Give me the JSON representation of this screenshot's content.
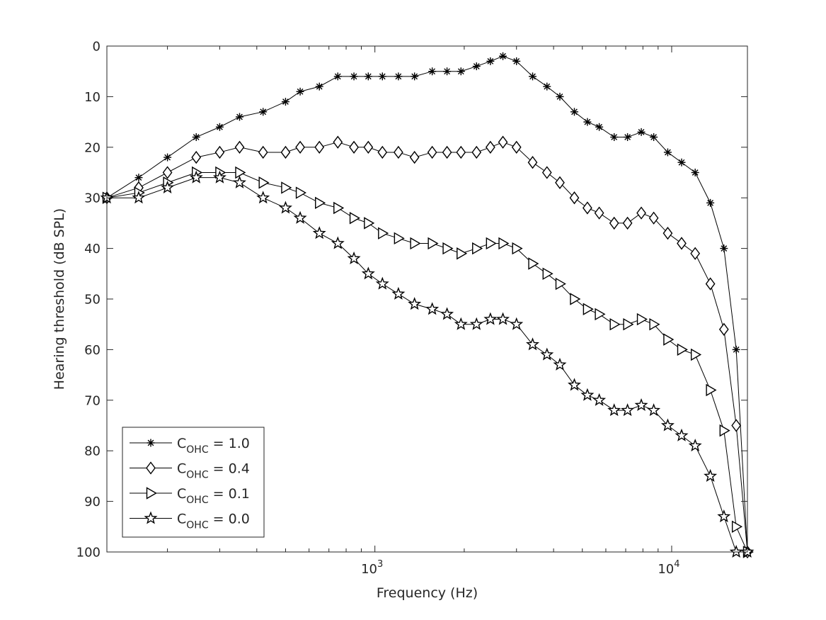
{
  "chart_data": {
    "type": "line",
    "title": "",
    "xlabel": "Frequency (Hz)",
    "ylabel": "Hearing threshold (dB SPL)",
    "xscale": "log",
    "xlim": [
      125,
      18000
    ],
    "ylim": [
      0,
      100
    ],
    "y_reversed": true,
    "grid": false,
    "legend_position": "bottom-left",
    "yticks": [
      0,
      10,
      20,
      30,
      40,
      50,
      60,
      70,
      80,
      90,
      100
    ],
    "xticks": [
      {
        "value": 1000,
        "base": "10",
        "exp": "3"
      },
      {
        "value": 10000,
        "base": "10",
        "exp": "4"
      }
    ],
    "x": [
      125,
      160,
      200,
      250,
      300,
      350,
      420,
      500,
      560,
      650,
      750,
      850,
      950,
      1060,
      1200,
      1360,
      1560,
      1750,
      1950,
      2200,
      2450,
      2700,
      3000,
      3400,
      3800,
      4200,
      4700,
      5200,
      5700,
      6400,
      7100,
      7900,
      8700,
      9700,
      10800,
      12000,
      13500,
      15000,
      16500,
      18000
    ],
    "series": [
      {
        "name": "C_OHC = 1.0",
        "label_main": "C",
        "label_sub": "OHC",
        "label_value": " = 1.0",
        "marker": "asterisk",
        "values": [
          30,
          26,
          22,
          18,
          16,
          14,
          13,
          11,
          9,
          8,
          6,
          6,
          6,
          6,
          6,
          6,
          5,
          5,
          5,
          4,
          3,
          2,
          3,
          6,
          8,
          10,
          13,
          15,
          16,
          18,
          18,
          17,
          18,
          21,
          23,
          25,
          31,
          40,
          60,
          100
        ]
      },
      {
        "name": "C_OHC = 0.4",
        "label_main": "C",
        "label_sub": "OHC",
        "label_value": " = 0.4",
        "marker": "diamond",
        "values": [
          30,
          28,
          25,
          22,
          21,
          20,
          21,
          21,
          20,
          20,
          19,
          20,
          20,
          21,
          21,
          22,
          21,
          21,
          21,
          21,
          20,
          19,
          20,
          23,
          25,
          27,
          30,
          32,
          33,
          35,
          35,
          33,
          34,
          37,
          39,
          41,
          47,
          56,
          75,
          100
        ]
      },
      {
        "name": "C_OHC = 0.1",
        "label_main": "C",
        "label_sub": "OHC",
        "label_value": " = 0.1",
        "marker": "triangle-right",
        "values": [
          30,
          29,
          27,
          25,
          25,
          25,
          27,
          28,
          29,
          31,
          32,
          34,
          35,
          37,
          38,
          39,
          39,
          40,
          41,
          40,
          39,
          39,
          40,
          43,
          45,
          47,
          50,
          52,
          53,
          55,
          55,
          54,
          55,
          58,
          60,
          61,
          68,
          76,
          95,
          100
        ]
      },
      {
        "name": "C_OHC = 0.0",
        "label_main": "C",
        "label_sub": "OHC",
        "label_value": " = 0.0",
        "marker": "pentagram",
        "values": [
          30,
          30,
          28,
          26,
          26,
          27,
          30,
          32,
          34,
          37,
          39,
          42,
          45,
          47,
          49,
          51,
          52,
          53,
          55,
          55,
          54,
          54,
          55,
          59,
          61,
          63,
          67,
          69,
          70,
          72,
          72,
          71,
          72,
          75,
          77,
          79,
          85,
          93,
          100,
          100
        ]
      }
    ]
  }
}
